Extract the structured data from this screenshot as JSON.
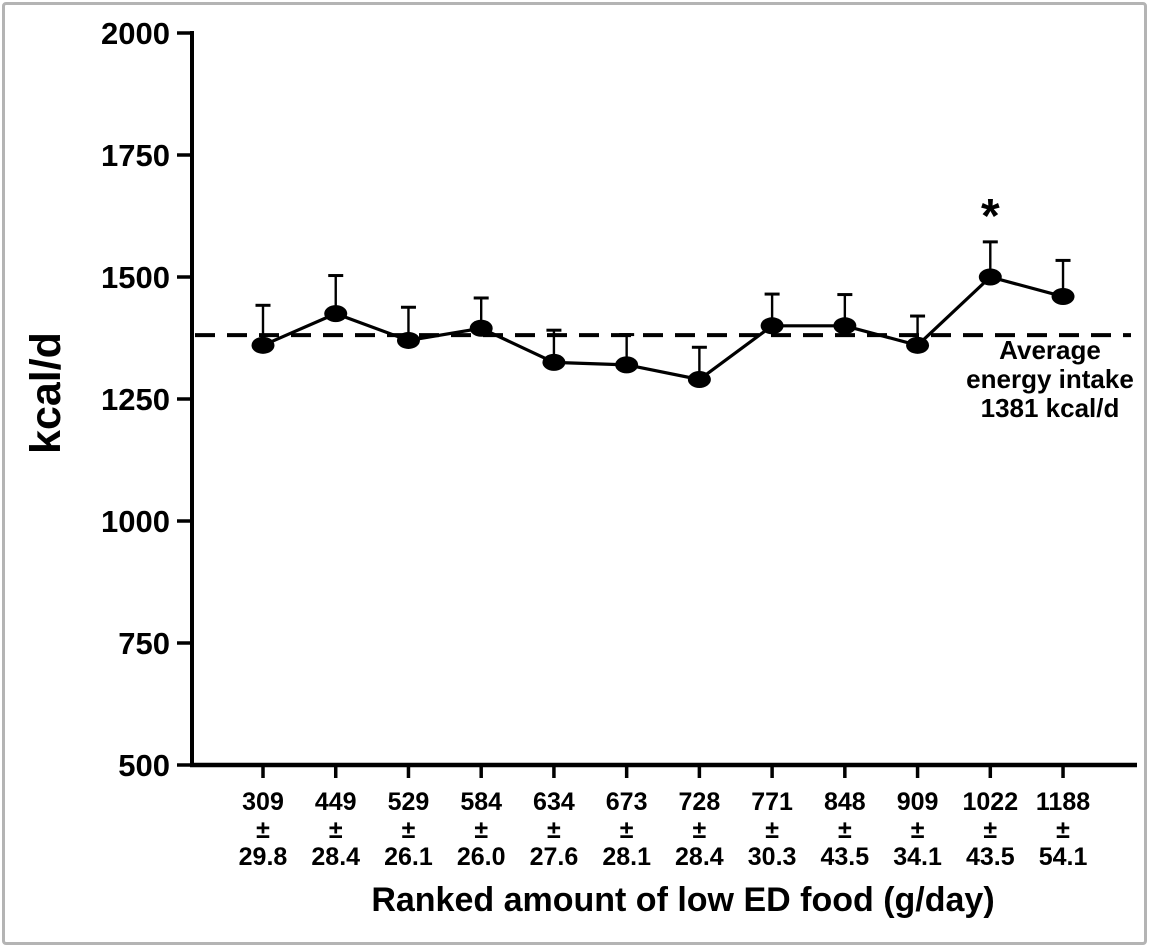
{
  "colors": {
    "ink": "#000000",
    "frame_border": "#b4b4b4",
    "background": "#ffffff"
  },
  "chart_data": {
    "type": "line",
    "title": "",
    "xlabel": "Ranked amount of low ED food (g/day)",
    "ylabel": "kcal/d",
    "ylim": [
      500,
      2000
    ],
    "yticks": [
      500,
      750,
      1000,
      1250,
      1500,
      1750,
      2000
    ],
    "grid": false,
    "legend": "none",
    "plus_minus": "±",
    "x_categories": [
      {
        "amount": "309",
        "se": "29.8"
      },
      {
        "amount": "449",
        "se": "28.4"
      },
      {
        "amount": "529",
        "se": "26.1"
      },
      {
        "amount": "584",
        "se": "26.0"
      },
      {
        "amount": "634",
        "se": "27.6"
      },
      {
        "amount": "673",
        "se": "28.1"
      },
      {
        "amount": "728",
        "se": "28.4"
      },
      {
        "amount": "771",
        "se": "30.3"
      },
      {
        "amount": "848",
        "se": "43.5"
      },
      {
        "amount": "909",
        "se": "34.1"
      },
      {
        "amount": "1022",
        "se": "43.5"
      },
      {
        "amount": "1188",
        "se": "54.1"
      }
    ],
    "series": [
      {
        "name": "energy intake",
        "values": [
          1360,
          1425,
          1370,
          1395,
          1325,
          1320,
          1290,
          1400,
          1400,
          1360,
          1500,
          1460
        ],
        "upper_error": [
          82,
          78,
          68,
          62,
          66,
          62,
          66,
          65,
          64,
          60,
          72,
          74
        ]
      }
    ],
    "reference_line": {
      "value": 1381,
      "style": "dashed",
      "label_lines": [
        "Average",
        "energy intake",
        "1381 kcal/d"
      ]
    },
    "significance": {
      "marker": "*",
      "category_index": 10
    }
  }
}
